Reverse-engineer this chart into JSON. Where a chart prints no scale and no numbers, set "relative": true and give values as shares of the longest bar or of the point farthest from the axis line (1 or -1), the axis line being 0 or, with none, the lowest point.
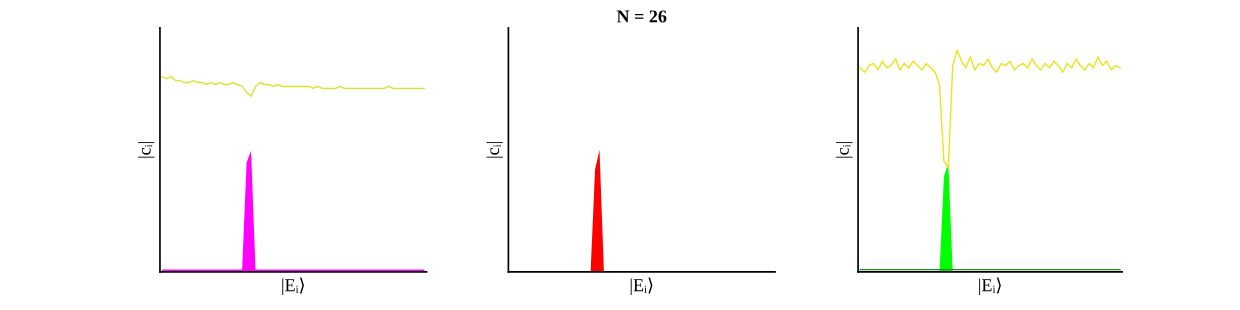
{
  "chart_data": [
    {
      "type": "line",
      "relative": true,
      "xlabel": "|Eᵢ⟩",
      "ylabel": "|cᵢ|",
      "categories": [
        null,
        null,
        null,
        null,
        null,
        null,
        null,
        null,
        null,
        null,
        null,
        null,
        null,
        null,
        null,
        null,
        null,
        null,
        null,
        null,
        null,
        null,
        null,
        null,
        null,
        null,
        null,
        null,
        null,
        null,
        null,
        null,
        null,
        null,
        null,
        null,
        null,
        null,
        null,
        null,
        null,
        null,
        null,
        null,
        null,
        null,
        null,
        null,
        null,
        null,
        null,
        null,
        null,
        null,
        null,
        null,
        null,
        null,
        null,
        null
      ],
      "series": [
        {
          "type": "area",
          "color": "#ff00ff",
          "values": [
            0.012,
            0.012,
            0.012,
            0.012,
            0.012,
            0.012,
            0.012,
            0.012,
            0.012,
            0.012,
            0.012,
            0.012,
            0.012,
            0.012,
            0.012,
            0.012,
            0.012,
            0.012,
            0.012,
            0.56,
            0.62,
            0.012,
            0.012,
            0.012,
            0.012,
            0.012,
            0.012,
            0.012,
            0.012,
            0.012,
            0.012,
            0.012,
            0.012,
            0.012,
            0.012,
            0.012,
            0.012,
            0.012,
            0.012,
            0.012,
            0.012,
            0.012,
            0.012,
            0.012,
            0.012,
            0.012,
            0.012,
            0.012,
            0.012,
            0.012,
            0.012,
            0.012,
            0.012,
            0.012,
            0.012,
            0.012,
            0.012,
            0.012,
            0.012,
            0.012
          ]
        },
        {
          "color": "#d8e62a",
          "values": [
            1.0,
            0.99,
            1.0,
            0.98,
            0.98,
            0.97,
            0.97,
            0.98,
            0.97,
            0.97,
            0.96,
            0.97,
            0.96,
            0.97,
            0.96,
            0.96,
            0.97,
            0.96,
            0.95,
            0.92,
            0.9,
            0.95,
            0.97,
            0.96,
            0.96,
            0.95,
            0.96,
            0.95,
            0.95,
            0.95,
            0.95,
            0.95,
            0.95,
            0.95,
            0.94,
            0.95,
            0.94,
            0.94,
            0.94,
            0.94,
            0.95,
            0.94,
            0.94,
            0.94,
            0.94,
            0.94,
            0.94,
            0.94,
            0.94,
            0.94,
            0.94,
            0.95,
            0.94,
            0.94,
            0.94,
            0.94,
            0.94,
            0.94,
            0.94,
            0.94
          ]
        }
      ]
    },
    {
      "type": "area",
      "relative": true,
      "title": "N = 26",
      "xlabel": "|Eᵢ⟩",
      "ylabel": "|cᵢ|",
      "categories": [
        null,
        null,
        null,
        null,
        null,
        null,
        null,
        null,
        null,
        null,
        null,
        null,
        null,
        null,
        null,
        null,
        null,
        null,
        null,
        null,
        null,
        null,
        null,
        null,
        null,
        null,
        null,
        null,
        null,
        null,
        null,
        null,
        null,
        null,
        null,
        null,
        null,
        null,
        null,
        null,
        null,
        null,
        null,
        null,
        null,
        null,
        null,
        null,
        null,
        null,
        null,
        null,
        null,
        null,
        null,
        null,
        null,
        null,
        null,
        null
      ],
      "series": [
        {
          "color": "#ff0000",
          "values": [
            0,
            0,
            0,
            0,
            0,
            0,
            0,
            0,
            0,
            0,
            0,
            0,
            0,
            0,
            0,
            0,
            0,
            0,
            0,
            0.84,
            1.0,
            0,
            0,
            0,
            0,
            0,
            0,
            0,
            0,
            0,
            0,
            0,
            0,
            0,
            0,
            0,
            0,
            0,
            0,
            0,
            0,
            0,
            0,
            0,
            0,
            0,
            0,
            0,
            0,
            0,
            0,
            0,
            0,
            0,
            0,
            0,
            0,
            0,
            0,
            0
          ]
        }
      ]
    },
    {
      "type": "line",
      "relative": true,
      "xlabel": "|Eᵢ⟩",
      "ylabel": "|cᵢ|",
      "categories": [
        null,
        null,
        null,
        null,
        null,
        null,
        null,
        null,
        null,
        null,
        null,
        null,
        null,
        null,
        null,
        null,
        null,
        null,
        null,
        null,
        null,
        null,
        null,
        null,
        null,
        null,
        null,
        null,
        null,
        null,
        null,
        null,
        null,
        null,
        null,
        null,
        null,
        null,
        null,
        null,
        null,
        null,
        null,
        null,
        null,
        null,
        null,
        null,
        null,
        null,
        null,
        null,
        null,
        null,
        null,
        null,
        null,
        null,
        null,
        null
      ],
      "series": [
        {
          "type": "area",
          "color": "#00ff00",
          "values": [
            null,
            null,
            null,
            null,
            null,
            null,
            null,
            null,
            null,
            null,
            null,
            null,
            null,
            null,
            null,
            null,
            null,
            null,
            0,
            0.43,
            0.49,
            0,
            null,
            null,
            null,
            null,
            null,
            null,
            null,
            null,
            null,
            null,
            null,
            null,
            null,
            null,
            null,
            null,
            null,
            null,
            null,
            null,
            null,
            null,
            null,
            null,
            null,
            null,
            null,
            null,
            null,
            null,
            null,
            null,
            null,
            null,
            null,
            null,
            null,
            null
          ]
        },
        {
          "color": "#228b22",
          "values": [
            0.01,
            0.01,
            0.01,
            0.01,
            0.01,
            0.01,
            0.01,
            0.01,
            0.01,
            0.01,
            0.01,
            0.01,
            0.01,
            0.01,
            0.01,
            0.01,
            0.01,
            0.01,
            0.01,
            0.01,
            0.01,
            0.01,
            0.01,
            0.01,
            0.01,
            0.01,
            0.01,
            0.01,
            0.01,
            0.01,
            0.01,
            0.01,
            0.01,
            0.01,
            0.01,
            0.01,
            0.01,
            0.01,
            0.01,
            0.01,
            0.01,
            0.01,
            0.01,
            0.01,
            0.01,
            0.01,
            0.01,
            0.01,
            0.01,
            0.01,
            0.01,
            0.01,
            0.01,
            0.01,
            0.01,
            0.01,
            0.01,
            0.01,
            0.01,
            0.01
          ]
        },
        {
          "color": "#e6e619",
          "values": [
            0.92,
            0.9,
            0.93,
            0.94,
            0.91,
            0.95,
            0.92,
            0.93,
            0.96,
            0.91,
            0.94,
            0.92,
            0.95,
            0.93,
            0.91,
            0.94,
            0.92,
            0.9,
            0.84,
            0.5,
            0.47,
            0.93,
            1.0,
            0.95,
            0.92,
            0.97,
            0.91,
            0.94,
            0.93,
            0.96,
            0.92,
            0.9,
            0.94,
            0.93,
            0.95,
            0.91,
            0.93,
            0.94,
            0.92,
            0.96,
            0.93,
            0.91,
            0.94,
            0.92,
            0.95,
            0.93,
            0.9,
            0.94,
            0.92,
            0.96,
            0.93,
            0.91,
            0.94,
            0.92,
            0.97,
            0.93,
            0.95,
            0.91,
            0.93,
            0.92
          ]
        }
      ]
    }
  ]
}
